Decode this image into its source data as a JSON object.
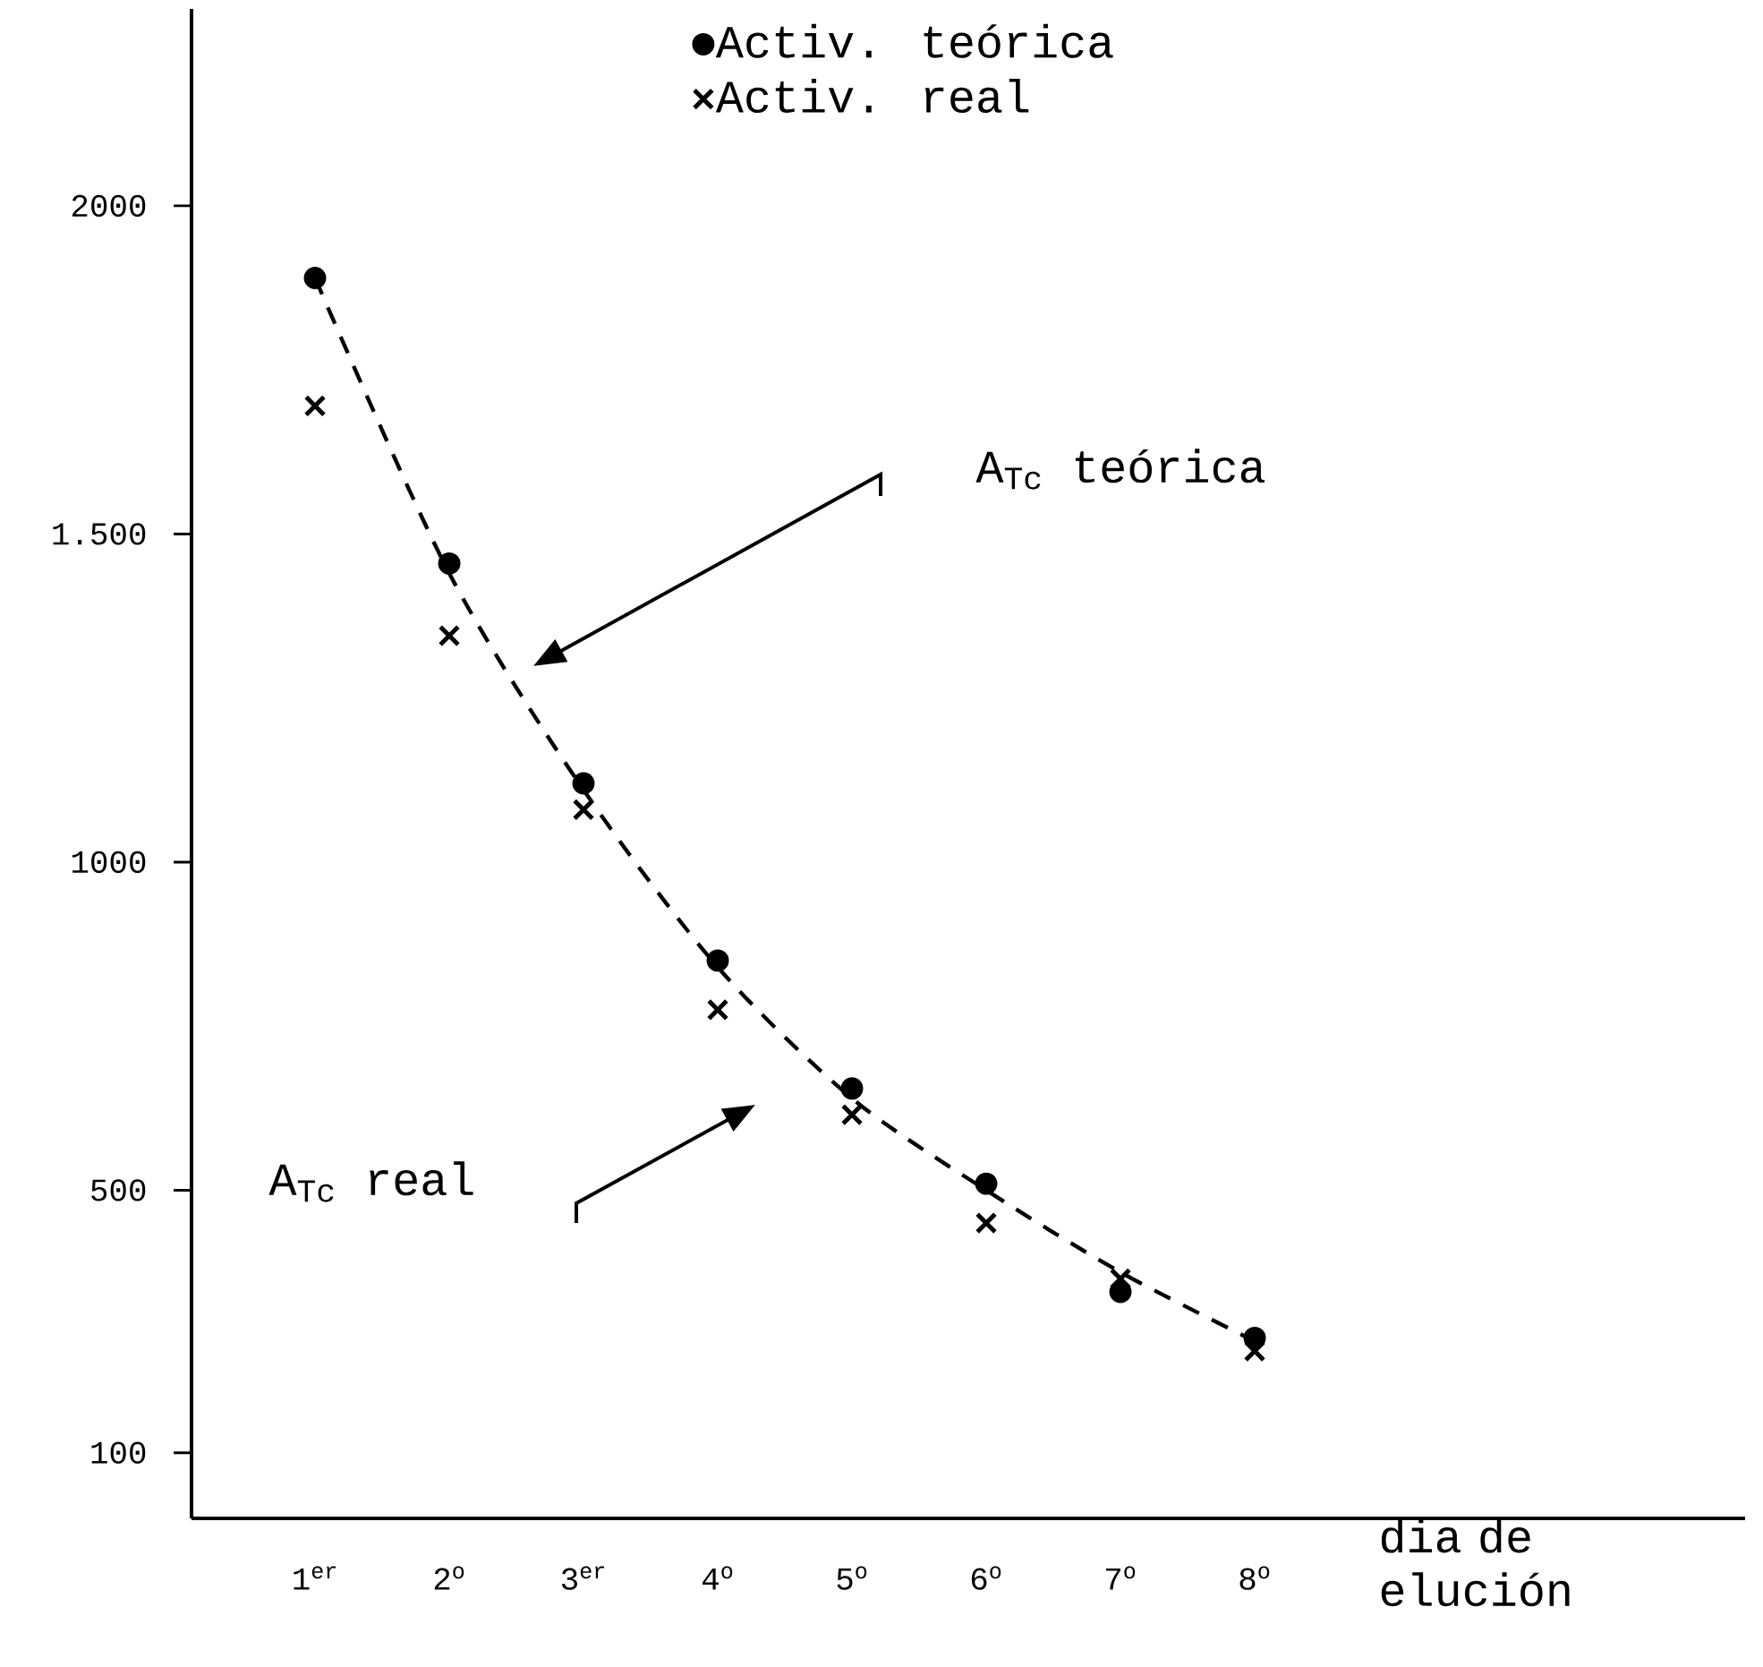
{
  "chart_data": {
    "type": "scatter",
    "categories": [
      "1$^{er}$",
      "2$^{o}$",
      "3$^{er}$",
      "4$^{o}$",
      "5$^{o}$",
      "6$^{o}$",
      "7$^{o}$",
      "8$^{o}$"
    ],
    "xlabel": "dia de elución",
    "series": [
      {
        "name": "Activ. teórica",
        "color": "#000000",
        "marker": "circle",
        "values": [
          1890,
          1455,
          1120,
          850,
          655,
          510,
          345,
          275
        ]
      },
      {
        "name": "Activ. real",
        "color": "#000000",
        "marker": "cross",
        "values": [
          1695,
          1345,
          1080,
          775,
          615,
          450,
          365,
          255
        ]
      },
      {
        "type": "line",
        "color": "#000000",
        "line_style": "dashed",
        "marker": "none",
        "values": [
          1890,
          1440,
          1110,
          840,
          640,
          500,
          375,
          270
        ]
      }
    ],
    "ylim": [
      0,
      2300
    ],
    "yticks": [
      100,
      500,
      1000,
      {
        "value": 1500,
        "label": "1.500"
      },
      2000
    ],
    "annotations": [
      "A$_{Tc}$ teórica",
      "A$_{Tc}$ real"
    ],
    "grid": false,
    "legend": "top"
  }
}
